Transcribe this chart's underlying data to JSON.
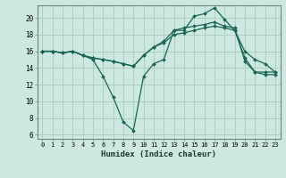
{
  "xlabel": "Humidex (Indice chaleur)",
  "bg_color": "#cce8e0",
  "grid_color": "#aaccbb",
  "line_color": "#1a6655",
  "xlim": [
    -0.5,
    23.5
  ],
  "ylim": [
    5.5,
    21.5
  ],
  "yticks": [
    6,
    8,
    10,
    12,
    14,
    16,
    18,
    20
  ],
  "xticks": [
    0,
    1,
    2,
    3,
    4,
    5,
    6,
    7,
    8,
    9,
    10,
    11,
    12,
    13,
    14,
    15,
    16,
    17,
    18,
    19,
    20,
    21,
    22,
    23
  ],
  "lines": [
    [
      16.0,
      16.0,
      15.8,
      16.0,
      15.5,
      15.0,
      13.0,
      10.5,
      7.5,
      6.5,
      13.0,
      14.5,
      15.0,
      18.5,
      18.5,
      20.2,
      20.5,
      21.2,
      19.8,
      18.5,
      15.2,
      13.5,
      13.2,
      13.2
    ],
    [
      16.0,
      16.0,
      15.8,
      16.0,
      15.5,
      15.2,
      15.0,
      14.8,
      14.5,
      14.2,
      15.5,
      16.5,
      17.0,
      18.0,
      18.2,
      18.5,
      18.8,
      19.0,
      18.8,
      18.5,
      16.0,
      15.0,
      14.5,
      13.5
    ],
    [
      16.0,
      16.0,
      15.8,
      16.0,
      15.5,
      15.2,
      15.0,
      14.8,
      14.5,
      14.2,
      15.5,
      16.5,
      17.2,
      18.5,
      18.8,
      19.0,
      19.2,
      19.5,
      19.0,
      18.8,
      14.8,
      13.5,
      13.5,
      13.5
    ]
  ]
}
